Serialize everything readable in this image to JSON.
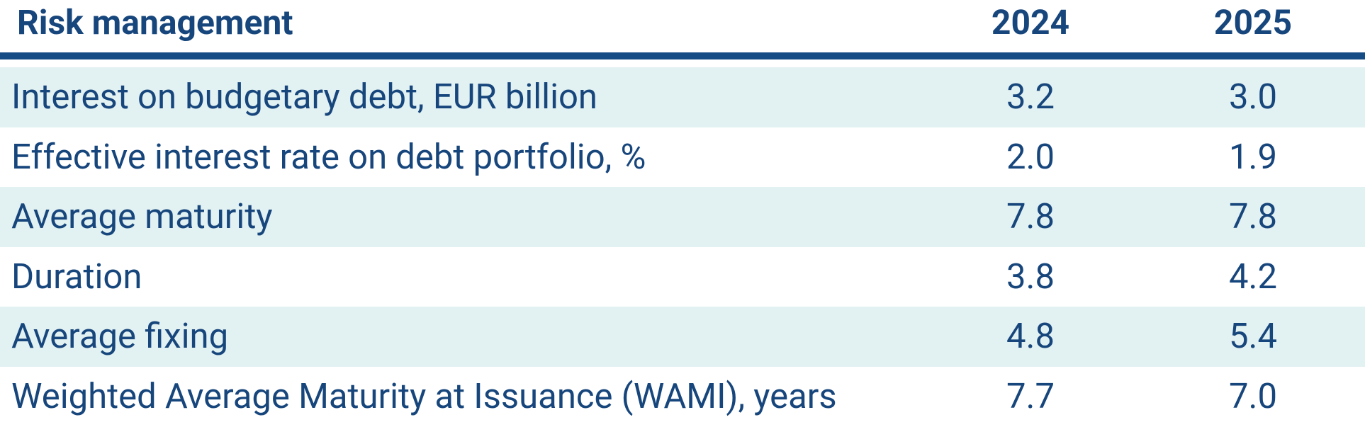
{
  "header": {
    "title": "Risk management",
    "columns": [
      "2024",
      "2025"
    ]
  },
  "table": {
    "rows": [
      [
        "Interest on budgetary debt, EUR billion",
        "3.2",
        "3.0"
      ],
      [
        "Effective interest rate on debt portfolio, %",
        "2.0",
        "1.9"
      ],
      [
        "Average maturity",
        "7.8",
        "7.8"
      ],
      [
        "Duration",
        "3.8",
        "4.2"
      ],
      [
        "Average fixing",
        "4.8",
        "5.4"
      ],
      [
        "Weighted Average Maturity at Issuance (WAMI), years",
        "7.7",
        "7.0"
      ]
    ]
  }
}
